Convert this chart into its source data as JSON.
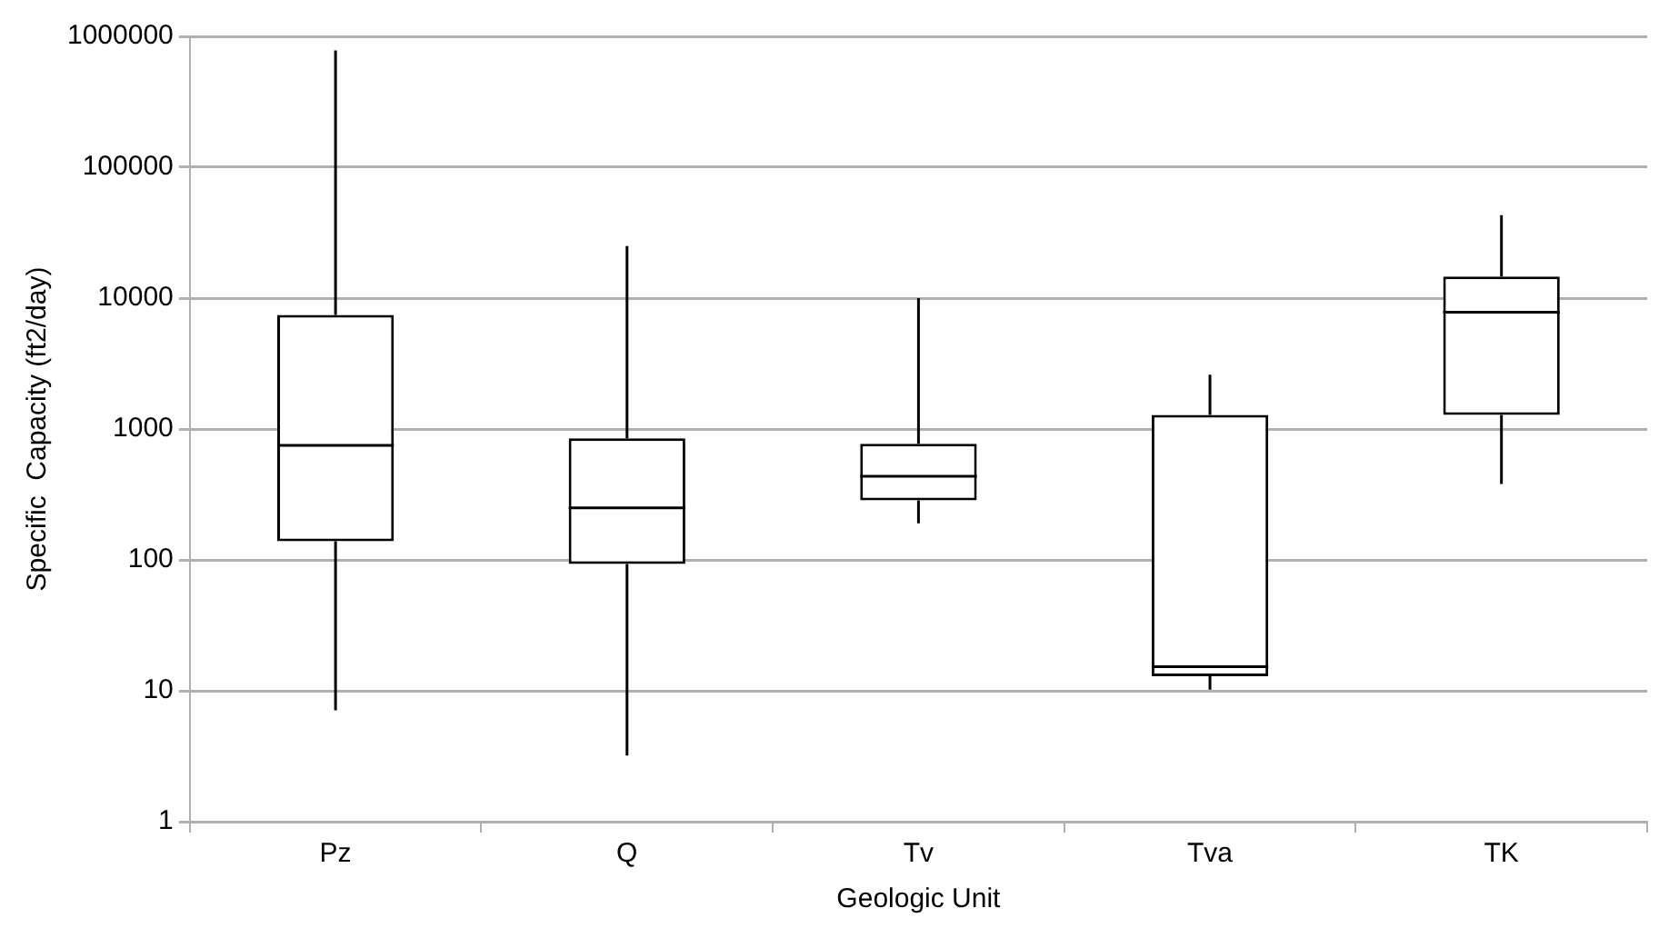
{
  "chart_data": {
    "type": "box",
    "xlabel": "Geologic Unit",
    "ylabel": "Specific  Capacity (ft2/day)",
    "categories": [
      "Pz",
      "Q",
      "Tv",
      "Tva",
      "TK"
    ],
    "boxes": [
      {
        "low": 7.1,
        "q1": 139,
        "median": 750,
        "q3": 7450,
        "high": 780000
      },
      {
        "low": 3.2,
        "q1": 93,
        "median": 250,
        "q3": 850,
        "high": 25000
      },
      {
        "low": 190,
        "q1": 285,
        "median": 435,
        "q3": 770,
        "high": 10000
      },
      {
        "low": 10.2,
        "q1": 12.9,
        "median": 15.3,
        "q3": 1280,
        "high": 2600
      },
      {
        "low": 380,
        "q1": 1280,
        "median": 7800,
        "q3": 14600,
        "high": 43000
      }
    ],
    "color": "#000000",
    "log": "y",
    "ylim": [
      1,
      1000000
    ],
    "yticks": [
      1,
      10,
      100,
      1000,
      10000,
      100000,
      1000000
    ],
    "grid": "y",
    "legend": false
  }
}
